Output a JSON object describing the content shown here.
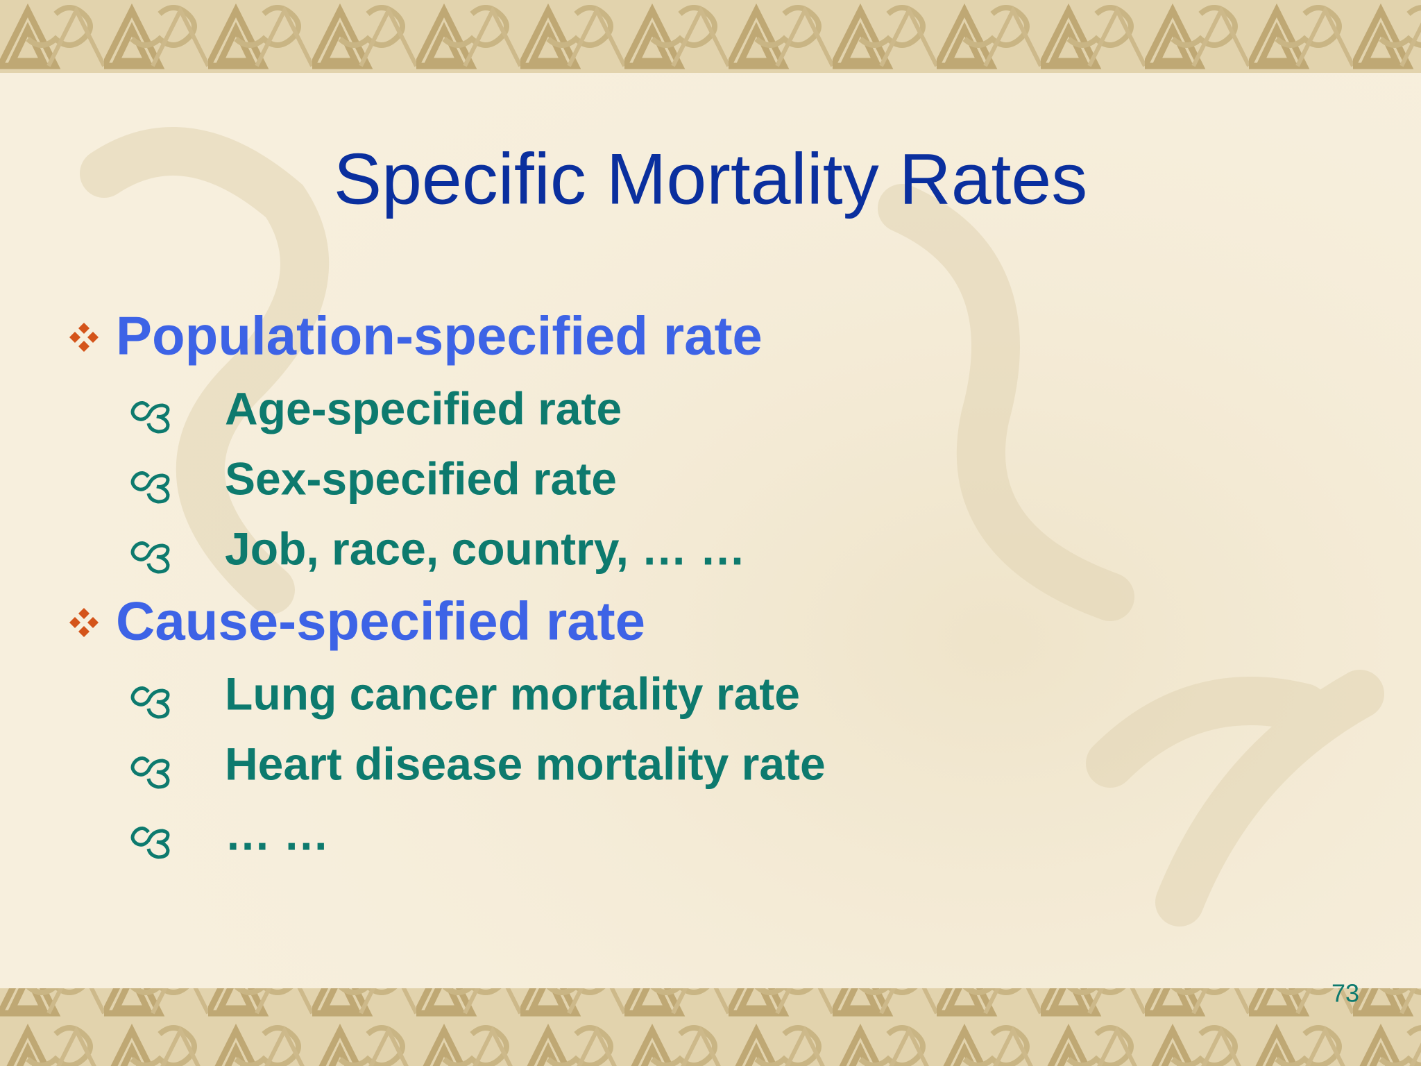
{
  "title": "Specific Mortality Rates",
  "bullets": [
    {
      "text": "Population-specified rate",
      "items": [
        "Age-specified rate",
        "Sex-specified rate",
        "Job, race, country, … …"
      ]
    },
    {
      "text": "Cause-specified rate",
      "items": [
        "Lung cancer mortality rate",
        "Heart disease mortality rate",
        "… …"
      ]
    }
  ],
  "page_number": "73"
}
